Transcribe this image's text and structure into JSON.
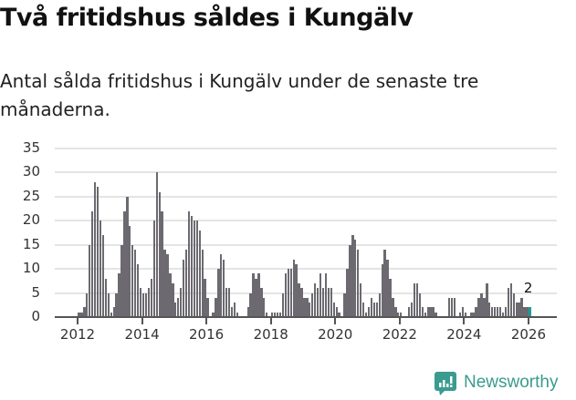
{
  "header": {
    "title": "Två fritidshus såldes i Kungälv",
    "subtitle": "Antal sålda fritidshus i Kungälv under de senaste tre månaderna."
  },
  "colors": {
    "bar": "#6c6a70",
    "highlight": "#1e9e96",
    "grid": "#e4e4e4",
    "brand": "#3a9b8f"
  },
  "branding": {
    "logo_text": "Newsworthy",
    "logo_icon": "bar-chart-speech-bubble-icon"
  },
  "chart_data": {
    "type": "bar",
    "title": "Två fritidshus såldes i Kungälv",
    "subtitle": "Antal sålda fritidshus i Kungälv under de senaste tre månaderna.",
    "xlabel": "",
    "ylabel": "",
    "ylim": [
      0,
      35
    ],
    "yticks": [
      "0",
      "5",
      "10",
      "15",
      "20",
      "25",
      "30",
      "35"
    ],
    "xticks": [
      "2012",
      "2014",
      "2016",
      "2018",
      "2020",
      "2022",
      "2024",
      "2026"
    ],
    "grid": true,
    "legend": null,
    "start": "2012-01",
    "end": "2026-01",
    "frequency": "monthly",
    "annotation": {
      "label": "2",
      "at": "2026-01"
    },
    "values": [
      1,
      1,
      2,
      5,
      15,
      22,
      28,
      27,
      20,
      17,
      8,
      5,
      1,
      2,
      5,
      9,
      15,
      22,
      25,
      19,
      15,
      14,
      11,
      6,
      5,
      5,
      6,
      8,
      20,
      30,
      26,
      22,
      14,
      13,
      9,
      7,
      3,
      4,
      6,
      12,
      14,
      22,
      21,
      20,
      20,
      18,
      14,
      8,
      4,
      0,
      1,
      4,
      10,
      13,
      12,
      6,
      6,
      2,
      3,
      1,
      0,
      0,
      0,
      2,
      5,
      9,
      8,
      9,
      6,
      4,
      1,
      0,
      1,
      1,
      1,
      1,
      5,
      9,
      10,
      10,
      12,
      11,
      7,
      6,
      4,
      4,
      3,
      5,
      7,
      6,
      9,
      6,
      9,
      6,
      6,
      3,
      2,
      1,
      0,
      5,
      10,
      15,
      17,
      16,
      14,
      7,
      3,
      1,
      2,
      4,
      3,
      3,
      5,
      11,
      14,
      12,
      8,
      4,
      2,
      1,
      1,
      0,
      0,
      2,
      3,
      7,
      7,
      5,
      2,
      1,
      2,
      2,
      2,
      1,
      0,
      0,
      0,
      0,
      4,
      4,
      4,
      0,
      1,
      2,
      1,
      0,
      1,
      1,
      2,
      4,
      5,
      4,
      7,
      3,
      2,
      2,
      2,
      2,
      1,
      2,
      6,
      7,
      5,
      3,
      3,
      4,
      2,
      2,
      2
    ]
  }
}
